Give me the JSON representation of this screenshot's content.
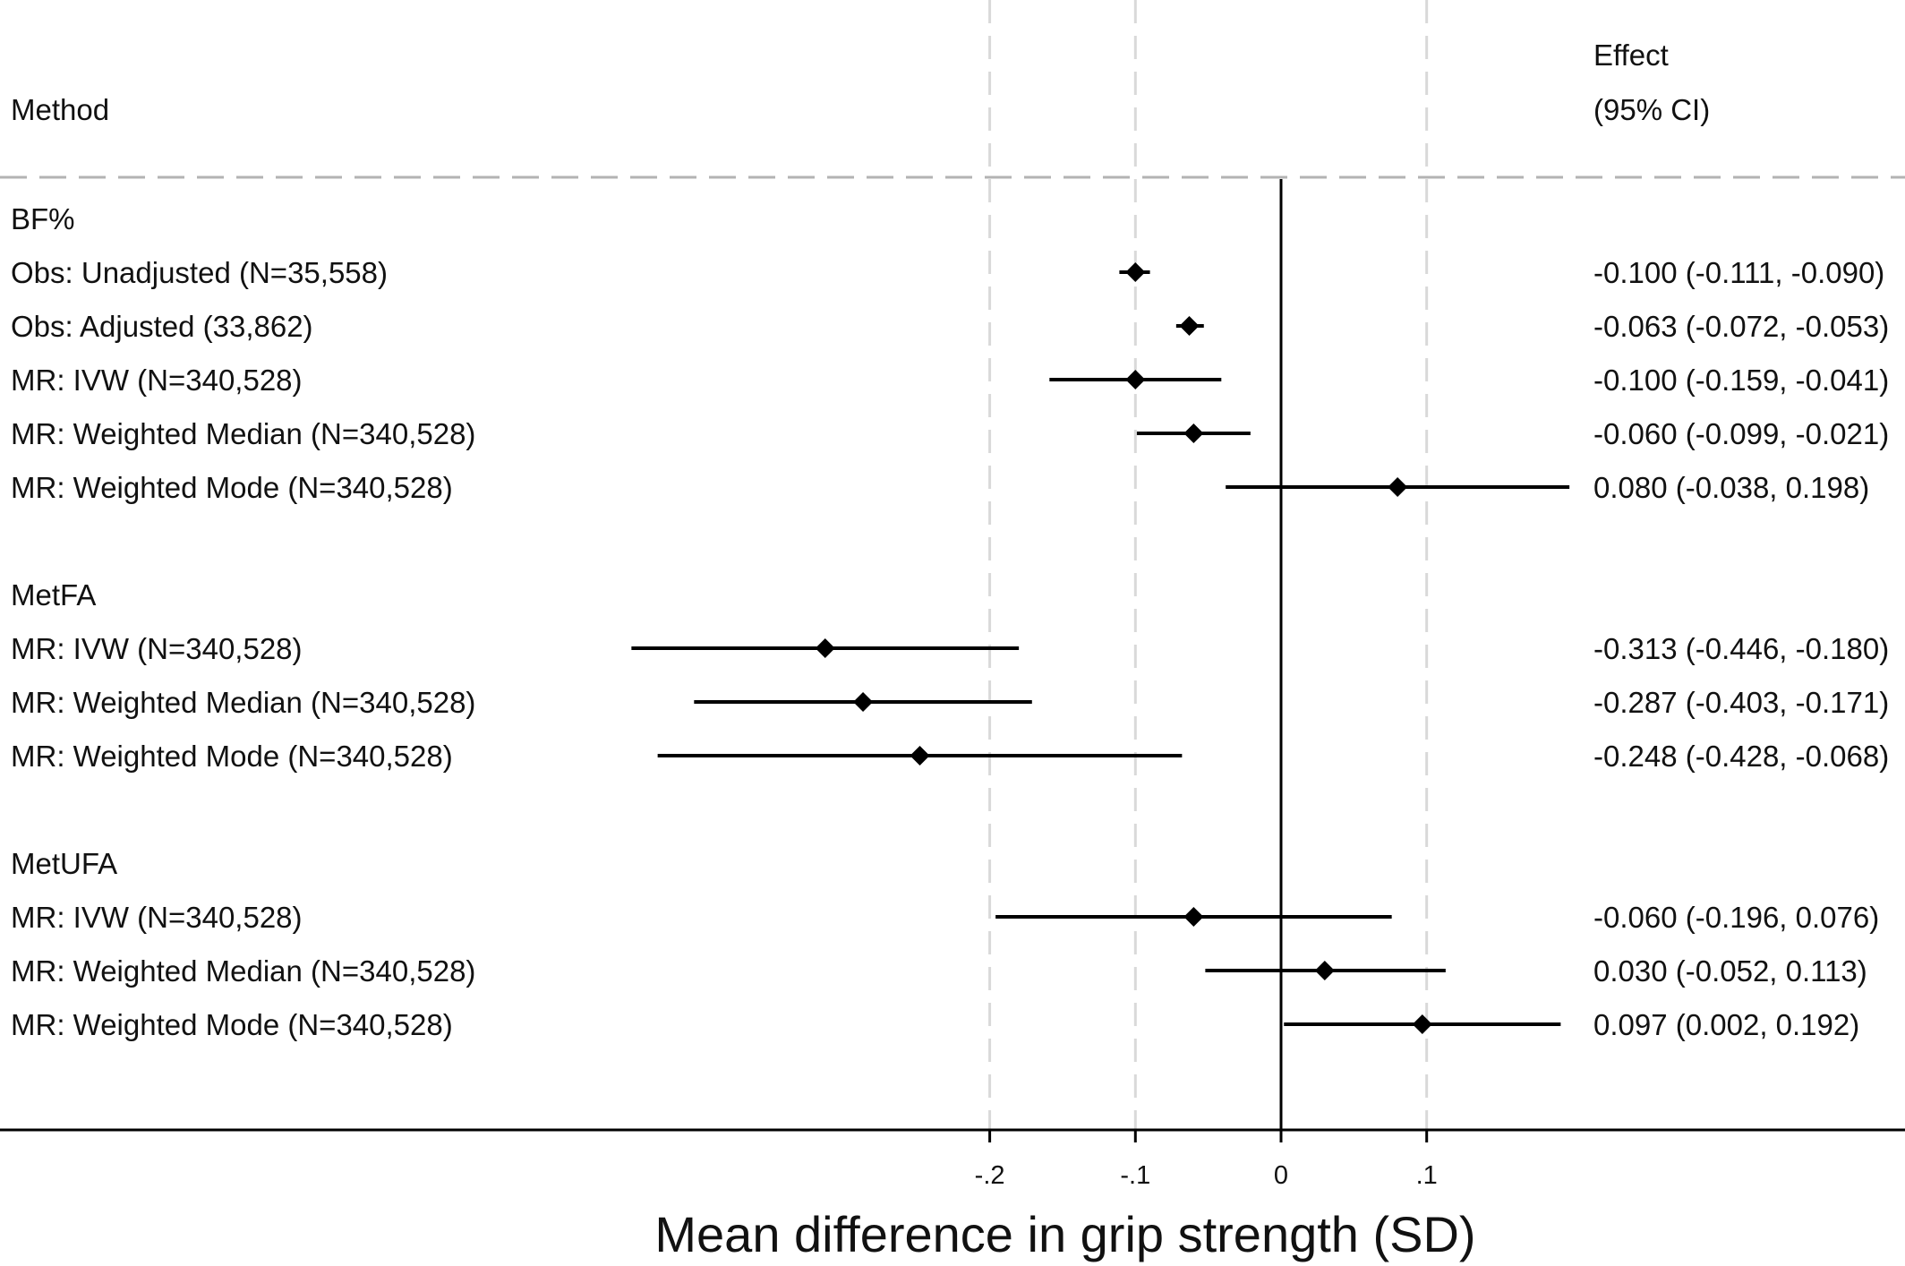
{
  "chart_data": {
    "type": "forest",
    "header": {
      "method": "Method",
      "effect_line1": "Effect",
      "effect_line2": "(95% CI)"
    },
    "xlabel": "Mean difference in grip strength (SD)",
    "xticks": [
      {
        "value": -0.2,
        "label": "-.2"
      },
      {
        "value": -0.1,
        "label": "-.1"
      },
      {
        "value": 0,
        "label": "0"
      },
      {
        "value": 0.1,
        "label": ".1"
      }
    ],
    "reference_line": 0,
    "grid_dashed_vertical": [
      -0.2,
      -0.1,
      0.1
    ],
    "groups": [
      {
        "name": "BF%",
        "rows": [
          {
            "label": "Obs: Unadjusted (N=35,558)",
            "est": -0.1,
            "lo": -0.111,
            "hi": -0.09,
            "text": "-0.100 (-0.111, -0.090)"
          },
          {
            "label": "Obs: Adjusted (33,862)",
            "est": -0.063,
            "lo": -0.072,
            "hi": -0.053,
            "text": "-0.063 (-0.072, -0.053)"
          },
          {
            "label": "MR: IVW (N=340,528)",
            "est": -0.1,
            "lo": -0.159,
            "hi": -0.041,
            "text": "-0.100 (-0.159, -0.041)"
          },
          {
            "label": "MR: Weighted Median (N=340,528)",
            "est": -0.06,
            "lo": -0.099,
            "hi": -0.021,
            "text": "-0.060 (-0.099, -0.021)"
          },
          {
            "label": "MR: Weighted Mode (N=340,528)",
            "est": 0.08,
            "lo": -0.038,
            "hi": 0.198,
            "text": "0.080 (-0.038, 0.198)"
          }
        ]
      },
      {
        "name": "MetFA",
        "rows": [
          {
            "label": "MR: IVW (N=340,528)",
            "est": -0.313,
            "lo": -0.446,
            "hi": -0.18,
            "text": "-0.313 (-0.446, -0.180)"
          },
          {
            "label": "MR: Weighted Median (N=340,528)",
            "est": -0.287,
            "lo": -0.403,
            "hi": -0.171,
            "text": "-0.287 (-0.403, -0.171)"
          },
          {
            "label": "MR: Weighted Mode (N=340,528)",
            "est": -0.248,
            "lo": -0.428,
            "hi": -0.068,
            "text": "-0.248 (-0.428, -0.068)"
          }
        ]
      },
      {
        "name": "MetUFA",
        "rows": [
          {
            "label": "MR: IVW (N=340,528)",
            "est": -0.06,
            "lo": -0.196,
            "hi": 0.076,
            "text": "-0.060 (-0.196, 0.076)"
          },
          {
            "label": "MR: Weighted Median (N=340,528)",
            "est": 0.03,
            "lo": -0.052,
            "hi": 0.113,
            "text": "0.030 (-0.052, 0.113)"
          },
          {
            "label": "MR: Weighted Mode (N=340,528)",
            "est": 0.097,
            "lo": 0.002,
            "hi": 0.192,
            "text": "0.097 (0.002, 0.192)"
          }
        ]
      }
    ],
    "colors": {
      "marks": "#000000",
      "grid": "#d9d9d9",
      "header_rule": "#b3b3b3",
      "text": "#111111"
    }
  }
}
